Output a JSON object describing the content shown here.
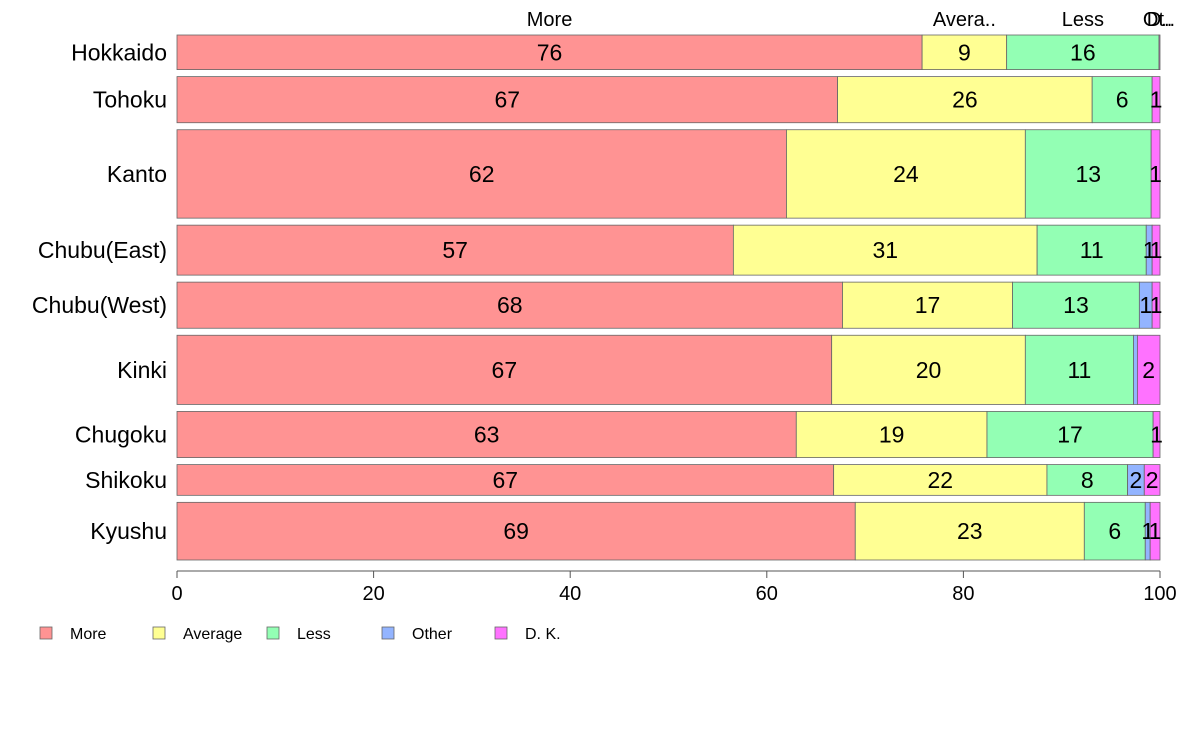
{
  "chart_data": {
    "type": "bar",
    "orientation": "horizontal",
    "stacked": true,
    "categories": [
      "Hokkaido",
      "Tohoku",
      "Kanto",
      "Chubu(East)",
      "Chubu(West)",
      "Kinki",
      "Chugoku",
      "Shikoku",
      "Kyushu"
    ],
    "category_weights": [
      0.9,
      1.2,
      2.3,
      1.3,
      1.2,
      1.8,
      1.2,
      0.8,
      1.5
    ],
    "series": [
      {
        "name": "More",
        "color": "#ff9393",
        "values": [
          75.8,
          67.2,
          62.0,
          56.6,
          67.7,
          66.6,
          63.0,
          66.8,
          69.0
        ],
        "labels": [
          "76",
          "67",
          "62",
          "57",
          "68",
          "67",
          "63",
          "67",
          "69"
        ]
      },
      {
        "name": "Average",
        "color": "#ffff93",
        "values": [
          8.6,
          25.9,
          24.3,
          30.9,
          17.3,
          19.7,
          19.4,
          21.7,
          23.3
        ],
        "labels": [
          "9",
          "26",
          "24",
          "31",
          "17",
          "20",
          "19",
          "22",
          "23"
        ]
      },
      {
        "name": "Less",
        "color": "#93ffb4",
        "values": [
          15.5,
          6.1,
          12.8,
          11.1,
          12.9,
          11.0,
          16.9,
          8.2,
          6.2
        ],
        "labels": [
          "16",
          "6",
          "13",
          "11",
          "13",
          "11",
          "17",
          "8",
          "6"
        ]
      },
      {
        "name": "Other",
        "color": "#93b4ff",
        "values": [
          0.0,
          0.0,
          0.0,
          0.6,
          1.3,
          0.4,
          0.0,
          1.7,
          0.5
        ],
        "labels": [
          "",
          "",
          "",
          "1",
          "1",
          "",
          "",
          "2",
          "1"
        ]
      },
      {
        "name": "D. K.",
        "color": "#ff72ff",
        "values": [
          0.1,
          0.8,
          0.9,
          0.8,
          0.8,
          2.3,
          0.7,
          1.6,
          1.0
        ],
        "labels": [
          "",
          "1",
          "1",
          "1",
          "1",
          "2",
          "1",
          "2",
          "1"
        ]
      }
    ],
    "top_labels": [
      "More",
      "Avera..",
      "Less",
      "Ot..",
      "D.."
    ],
    "xlim": [
      0,
      100
    ],
    "xticks": [
      0,
      20,
      40,
      60,
      80,
      100
    ],
    "grid": false,
    "legend_position": "bottom-left",
    "legend_entries": [
      "More",
      "Average",
      "Less",
      "Other",
      "D. K."
    ]
  }
}
